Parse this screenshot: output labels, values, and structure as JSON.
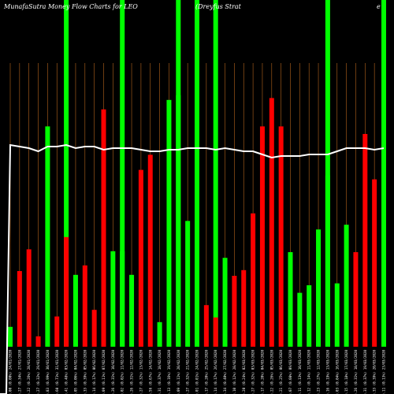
{
  "header": {
    "title": "MunafaSutra Money Flow Charts for LEO",
    "company": "(Dreyfus Strat",
    "title_tail": "e"
  },
  "colors": {
    "background": "#000000",
    "up": "#00ff00",
    "down": "#ff0000",
    "price_line": "#ffffff",
    "grid": "#b5651d"
  },
  "chart_data": {
    "type": "bar",
    "title": "MunafaSutra Money Flow Charts for LEO",
    "categories": [
      "0.00 (0.00%) 24/01/2020",
      "0.27 (0.34%) 27/01/2020",
      "0.22 (0.26%) 28/01/2020",
      "0.27 (0.32%) 29/01/2020",
      "0.83 (0.99%) 30/01/2020",
      "0.60 (0.71%) 31/01/2020",
      "0.41 (0.48%) 03/02/2020",
      "0.05 (0.06%) 04/02/2020",
      "0.33 (0.39%) 05/02/2020",
      "0.14 (0.17%) 06/02/2020",
      "0.09 (0.11%) 07/02/2020",
      "0.26 (0.31%) 10/02/2020",
      "0.02 (0.02%) 11/02/2020",
      "0.26 (0.31%) 12/02/2020",
      "0.27 (0.32%) 13/02/2020",
      "0.56 (0.67%) 14/02/2020",
      "0.31 (0.37%) 18/02/2020",
      "0.13 (0.16%) 19/02/2020",
      "0.09 (0.11%) 20/02/2020",
      "0.27 (0.32%) 21/02/2020",
      "0.01 (0.01%) 24/02/2020",
      "0.17 (0.20%) 25/02/2020",
      "0.14 (0.17%) 26/02/2020",
      "0.34 (0.40%) 27/02/2020",
      "0.10 (0.12%) 28/02/2020",
      "0.20 (0.24%) 02/03/2020",
      "0.27 (0.32%) 03/03/2020",
      "0.17 (0.20%) 04/03/2020",
      "0.22 (0.26%) 05/03/2020",
      "0.21 (0.25%) 06/03/2020",
      "0.07 (0.08%) 09/03/2020",
      "0.11 (0.13%) 10/03/2020",
      "0.12 (0.14%) 11/03/2020",
      "0.23 (0.27%) 12/03/2020",
      "0.16 (0.19%) 13/03/2020",
      "0.03 (0.04%) 16/03/2020",
      "0.15 (0.18%) 17/03/2020",
      "0.26 (0.31%) 18/03/2020",
      "0.31 (0.37%) 19/03/2020",
      "0.33 (0.39%) 20/03/2020",
      "0.11 (0.13%) 23/03/2020"
    ],
    "values": [
      21,
      80,
      103,
      11,
      233,
      32,
      116,
      76,
      86,
      39,
      251,
      101,
      101,
      76,
      187,
      203,
      26,
      261,
      266,
      133,
      29,
      44,
      31,
      94,
      75,
      81,
      141,
      233,
      263,
      233,
      100,
      57,
      65,
      124,
      181,
      67,
      129,
      100,
      225,
      177,
      30
    ],
    "directions": [
      "up",
      "down",
      "down",
      "down",
      "up",
      "down",
      "down",
      "up",
      "down",
      "down",
      "down",
      "up",
      "up",
      "up",
      "down",
      "down",
      "up",
      "up",
      "up",
      "up",
      "up",
      "down",
      "down",
      "up",
      "down",
      "down",
      "down",
      "down",
      "down",
      "down",
      "up",
      "up",
      "up",
      "up",
      "up",
      "up",
      "up",
      "down",
      "down",
      "down",
      "up"
    ],
    "price_line": [
      83.8,
      83.7,
      83.6,
      83.4,
      83.7,
      83.7,
      83.8,
      83.6,
      83.7,
      83.7,
      83.5,
      83.6,
      83.6,
      83.6,
      83.5,
      83.4,
      83.4,
      83.5,
      83.5,
      83.6,
      83.6,
      83.6,
      83.5,
      83.6,
      83.5,
      83.4,
      83.4,
      83.2,
      83.0,
      83.1,
      83.1,
      83.1,
      83.2,
      83.2,
      83.2,
      83.4,
      83.6,
      83.6,
      83.6,
      83.5,
      83.6
    ],
    "full_height_markers": [
      6,
      12,
      18,
      20,
      22,
      34,
      40
    ],
    "ylim": [
      0,
      300
    ],
    "grid": true,
    "legend": "none"
  }
}
